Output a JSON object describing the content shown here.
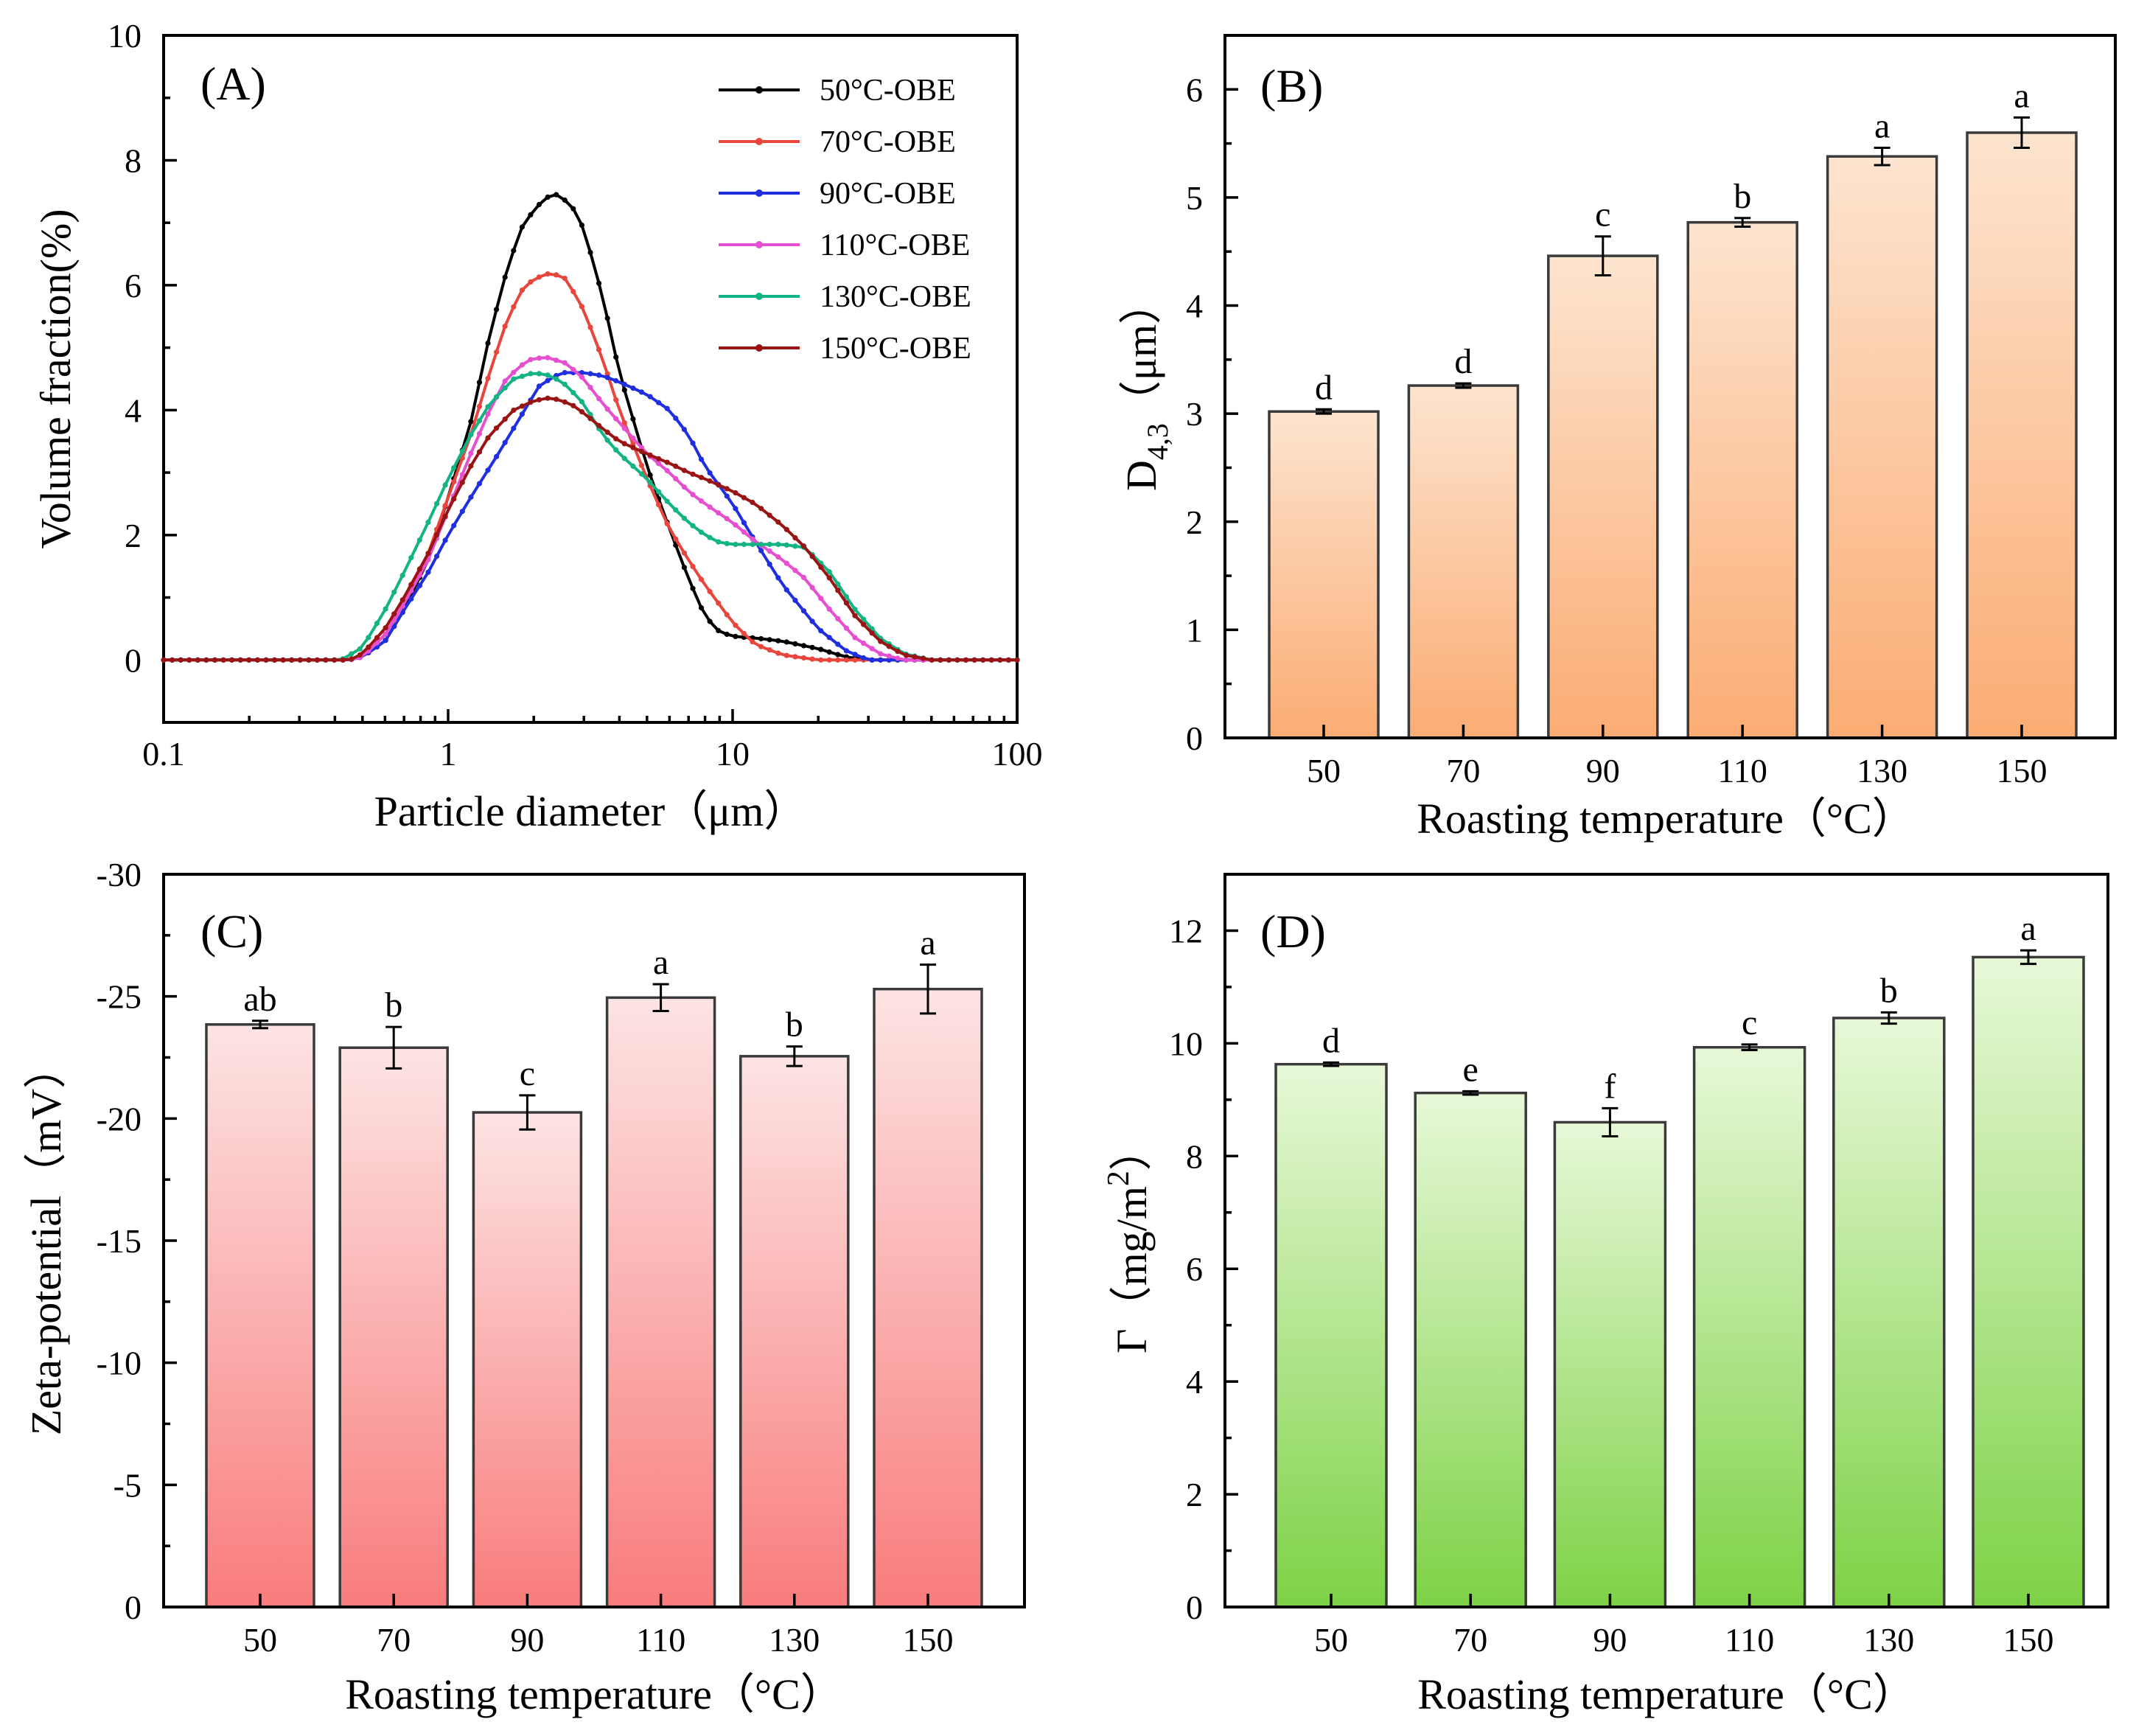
{
  "colors": {
    "bar_B_top": "#fde4cf",
    "bar_B_bottom": "#fbac73",
    "bar_C_top": "#fde4e4",
    "bar_C_bottom": "#f97c7c",
    "bar_D_top": "#e8f8d8",
    "bar_D_bottom": "#7dd246"
  },
  "chart_data": [
    {
      "panel": "(A)",
      "type": "line",
      "xscale": "log",
      "xlabel": "Particle diameter（μm）",
      "ylabel": "Volume fraction(%)",
      "xlim": [
        0.1,
        100
      ],
      "ylim": [
        -1,
        10
      ],
      "xticks": [
        "0.1",
        "1",
        "10",
        "100"
      ],
      "yticks": [
        "0",
        "2",
        "4",
        "6",
        "8",
        "10"
      ],
      "legend_position": "top-right",
      "series": [
        {
          "name": "50°C-OBE",
          "color": "#000000",
          "points": [
            [
              0.1,
              0
            ],
            [
              0.3,
              0
            ],
            [
              0.45,
              0
            ],
            [
              0.5,
              0.05
            ],
            [
              0.6,
              0.3
            ],
            [
              0.7,
              0.8
            ],
            [
              0.85,
              1.6
            ],
            [
              1.0,
              2.6
            ],
            [
              1.2,
              3.8
            ],
            [
              1.4,
              5.2
            ],
            [
              1.6,
              6.2
            ],
            [
              1.8,
              6.9
            ],
            [
              2.0,
              7.2
            ],
            [
              2.2,
              7.4
            ],
            [
              2.4,
              7.45
            ],
            [
              2.7,
              7.3
            ],
            [
              3.0,
              6.9
            ],
            [
              3.5,
              5.8
            ],
            [
              4.0,
              4.6
            ],
            [
              5.0,
              3.1
            ],
            [
              6.0,
              2.1
            ],
            [
              7.0,
              1.3
            ],
            [
              8.0,
              0.7
            ],
            [
              9.0,
              0.45
            ],
            [
              10,
              0.38
            ],
            [
              12,
              0.35
            ],
            [
              15,
              0.3
            ],
            [
              20,
              0.18
            ],
            [
              25,
              0.05
            ],
            [
              30,
              0
            ],
            [
              100,
              0
            ]
          ]
        },
        {
          "name": "70°C-OBE",
          "color": "#e8463c",
          "points": [
            [
              0.1,
              0
            ],
            [
              0.3,
              0
            ],
            [
              0.45,
              0
            ],
            [
              0.5,
              0.05
            ],
            [
              0.6,
              0.4
            ],
            [
              0.7,
              0.9
            ],
            [
              0.85,
              1.7
            ],
            [
              1.0,
              2.6
            ],
            [
              1.2,
              3.6
            ],
            [
              1.4,
              4.6
            ],
            [
              1.6,
              5.4
            ],
            [
              1.8,
              5.9
            ],
            [
              2.0,
              6.1
            ],
            [
              2.3,
              6.2
            ],
            [
              2.6,
              6.1
            ],
            [
              3.0,
              5.6
            ],
            [
              3.5,
              4.8
            ],
            [
              4.0,
              4.0
            ],
            [
              5.0,
              2.9
            ],
            [
              6.0,
              2.1
            ],
            [
              7.0,
              1.6
            ],
            [
              8.0,
              1.2
            ],
            [
              10,
              0.6
            ],
            [
              12,
              0.25
            ],
            [
              15,
              0.08
            ],
            [
              20,
              0
            ],
            [
              100,
              0
            ]
          ]
        },
        {
          "name": "90°C-OBE",
          "color": "#1f2fe0",
          "points": [
            [
              0.1,
              0
            ],
            [
              0.3,
              0
            ],
            [
              0.45,
              0
            ],
            [
              0.5,
              0.05
            ],
            [
              0.6,
              0.3
            ],
            [
              0.7,
              0.8
            ],
            [
              0.85,
              1.4
            ],
            [
              1.0,
              2.0
            ],
            [
              1.2,
              2.6
            ],
            [
              1.5,
              3.3
            ],
            [
              1.8,
              3.9
            ],
            [
              2.1,
              4.4
            ],
            [
              2.5,
              4.6
            ],
            [
              3.0,
              4.6
            ],
            [
              3.5,
              4.55
            ],
            [
              4.0,
              4.45
            ],
            [
              5.0,
              4.25
            ],
            [
              6.0,
              4.0
            ],
            [
              7.0,
              3.6
            ],
            [
              8.0,
              3.1
            ],
            [
              10,
              2.5
            ],
            [
              12,
              1.9
            ],
            [
              15,
              1.2
            ],
            [
              20,
              0.5
            ],
            [
              25,
              0.15
            ],
            [
              30,
              0
            ],
            [
              100,
              0
            ]
          ]
        },
        {
          "name": "110°C-OBE",
          "color": "#e64fd0",
          "points": [
            [
              0.1,
              0
            ],
            [
              0.3,
              0
            ],
            [
              0.45,
              0
            ],
            [
              0.5,
              0.05
            ],
            [
              0.6,
              0.4
            ],
            [
              0.7,
              0.9
            ],
            [
              0.85,
              1.6
            ],
            [
              1.0,
              2.4
            ],
            [
              1.2,
              3.3
            ],
            [
              1.4,
              4.0
            ],
            [
              1.6,
              4.5
            ],
            [
              1.9,
              4.8
            ],
            [
              2.2,
              4.85
            ],
            [
              2.6,
              4.75
            ],
            [
              3.0,
              4.5
            ],
            [
              3.5,
              4.1
            ],
            [
              4.0,
              3.8
            ],
            [
              5.0,
              3.3
            ],
            [
              6.0,
              3.0
            ],
            [
              7.0,
              2.7
            ],
            [
              8.0,
              2.5
            ],
            [
              10,
              2.2
            ],
            [
              12,
              1.9
            ],
            [
              15,
              1.6
            ],
            [
              18,
              1.3
            ],
            [
              22,
              0.8
            ],
            [
              27,
              0.35
            ],
            [
              33,
              0.1
            ],
            [
              40,
              0
            ],
            [
              100,
              0
            ]
          ]
        },
        {
          "name": "130°C-OBE",
          "color": "#13b383",
          "points": [
            [
              0.1,
              0
            ],
            [
              0.3,
              0
            ],
            [
              0.42,
              0
            ],
            [
              0.5,
              0.2
            ],
            [
              0.6,
              0.8
            ],
            [
              0.7,
              1.4
            ],
            [
              0.85,
              2.2
            ],
            [
              1.0,
              2.9
            ],
            [
              1.2,
              3.6
            ],
            [
              1.4,
              4.1
            ],
            [
              1.7,
              4.5
            ],
            [
              2.0,
              4.6
            ],
            [
              2.3,
              4.55
            ],
            [
              2.6,
              4.4
            ],
            [
              3.0,
              4.1
            ],
            [
              3.5,
              3.6
            ],
            [
              4.0,
              3.3
            ],
            [
              5.0,
              2.9
            ],
            [
              6.0,
              2.5
            ],
            [
              7.0,
              2.2
            ],
            [
              8.0,
              2.0
            ],
            [
              9.0,
              1.88
            ],
            [
              10,
              1.85
            ],
            [
              12,
              1.85
            ],
            [
              15,
              1.85
            ],
            [
              18,
              1.8
            ],
            [
              22,
              1.4
            ],
            [
              27,
              0.8
            ],
            [
              33,
              0.35
            ],
            [
              40,
              0.1
            ],
            [
              50,
              0
            ],
            [
              100,
              0
            ]
          ]
        },
        {
          "name": "150°C-OBE",
          "color": "#9b1414",
          "points": [
            [
              0.1,
              0
            ],
            [
              0.3,
              0
            ],
            [
              0.45,
              0
            ],
            [
              0.5,
              0.1
            ],
            [
              0.6,
              0.5
            ],
            [
              0.7,
              1.0
            ],
            [
              0.85,
              1.7
            ],
            [
              1.0,
              2.4
            ],
            [
              1.2,
              3.1
            ],
            [
              1.4,
              3.6
            ],
            [
              1.7,
              4.0
            ],
            [
              2.0,
              4.15
            ],
            [
              2.3,
              4.2
            ],
            [
              2.7,
              4.1
            ],
            [
              3.0,
              3.95
            ],
            [
              3.5,
              3.7
            ],
            [
              4.0,
              3.5
            ],
            [
              5.0,
              3.3
            ],
            [
              6.0,
              3.15
            ],
            [
              7.0,
              3.0
            ],
            [
              8.0,
              2.9
            ],
            [
              10,
              2.7
            ],
            [
              12,
              2.5
            ],
            [
              15,
              2.15
            ],
            [
              18,
              1.8
            ],
            [
              22,
              1.3
            ],
            [
              27,
              0.7
            ],
            [
              33,
              0.3
            ],
            [
              40,
              0.08
            ],
            [
              50,
              0
            ],
            [
              100,
              0
            ]
          ]
        }
      ]
    },
    {
      "panel": "(B)",
      "type": "bar",
      "xlabel": "Roasting temperature（°C）",
      "ylabel_main": "D",
      "ylabel_sub": "4,3",
      "ylabel_unit": "（μm）",
      "ylim": [
        0,
        6.5
      ],
      "yticks": [
        "0",
        "1",
        "2",
        "3",
        "4",
        "5",
        "6"
      ],
      "categories": [
        "50",
        "70",
        "90",
        "110",
        "130",
        "150"
      ],
      "values": [
        3.02,
        3.26,
        4.46,
        4.77,
        5.38,
        5.6
      ],
      "errors": [
        0.02,
        0.02,
        0.18,
        0.04,
        0.08,
        0.14
      ],
      "letters": [
        "d",
        "d",
        "c",
        "b",
        "a",
        "a"
      ]
    },
    {
      "panel": "(C)",
      "type": "bar",
      "xlabel": "Roasting temperature（°C）",
      "ylabel": "Zeta-potential（mV）",
      "ylim": [
        0,
        -30
      ],
      "yticks": [
        "0",
        "-5",
        "-10",
        "-15",
        "-20",
        "-25",
        "-30"
      ],
      "categories": [
        "50",
        "70",
        "90",
        "110",
        "130",
        "150"
      ],
      "values": [
        -23.85,
        -22.9,
        -20.25,
        -24.95,
        -22.55,
        -25.3
      ],
      "errors": [
        0.15,
        0.85,
        0.7,
        0.55,
        0.4,
        1.0
      ],
      "letters": [
        "ab",
        "b",
        "c",
        "a",
        "b",
        "a"
      ]
    },
    {
      "panel": "(D)",
      "type": "bar",
      "xlabel": "Roasting temperature（°C）",
      "ylabel_main": "Γ（mg/m",
      "ylabel_sup": "2",
      "ylabel_end": "）",
      "ylim": [
        0,
        13
      ],
      "yticks": [
        "0",
        "2",
        "4",
        "6",
        "8",
        "10",
        "12"
      ],
      "categories": [
        "50",
        "70",
        "90",
        "110",
        "130",
        "150"
      ],
      "values": [
        9.63,
        9.12,
        8.6,
        9.93,
        10.45,
        11.53
      ],
      "errors": [
        0.03,
        0.03,
        0.25,
        0.05,
        0.1,
        0.12
      ],
      "letters": [
        "d",
        "e",
        "f",
        "c",
        "b",
        "a"
      ]
    }
  ]
}
